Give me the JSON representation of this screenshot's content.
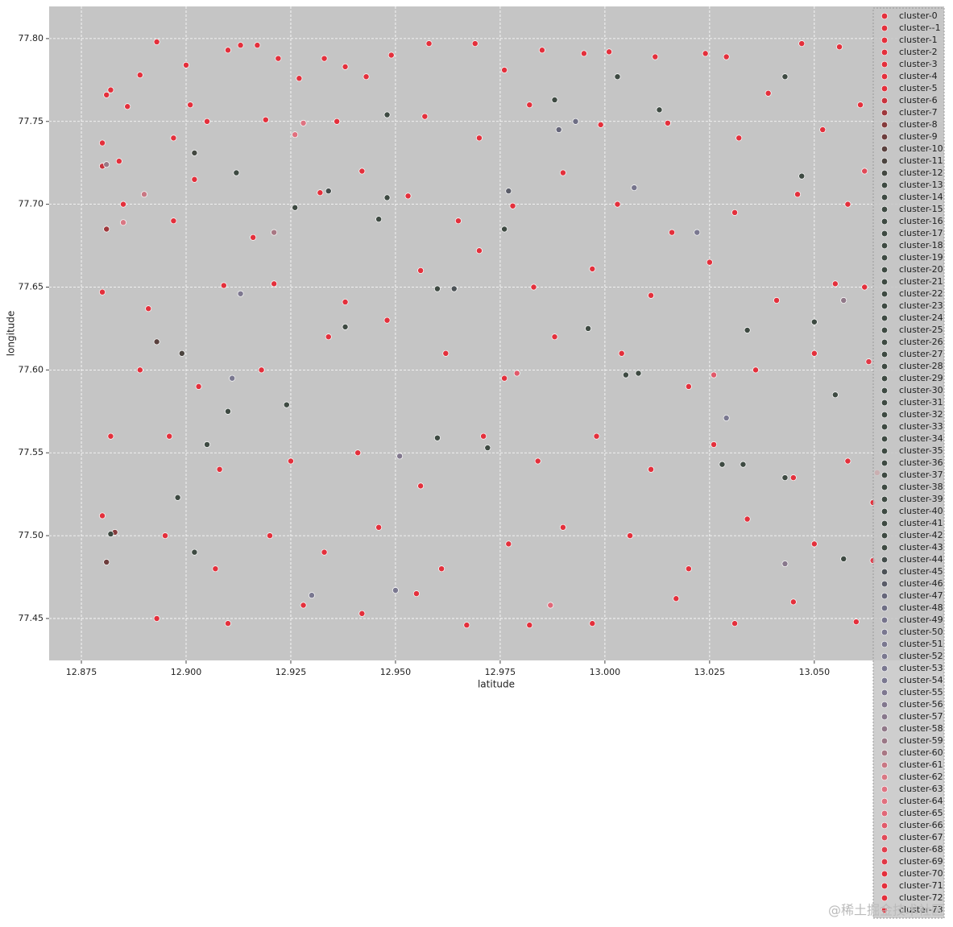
{
  "chart_data": {
    "type": "scatter",
    "x_label": "latitude",
    "y_label": "longitude",
    "xlim": [
      12.8673,
      13.081
    ],
    "ylim": [
      77.4247,
      77.8194
    ],
    "xticks": [
      12.875,
      {
        "value": 12.9,
        "label": "12.900"
      },
      12.925,
      {
        "value": 12.95,
        "label": "12.950"
      },
      12.975,
      {
        "value": 13.0,
        "label": "13.000"
      },
      13.025,
      {
        "value": 13.05,
        "label": "13.050"
      }
    ],
    "yticks": [
      {
        "value": 77.8,
        "label": "77.80"
      },
      77.75,
      {
        "value": 77.7,
        "label": "77.70"
      },
      77.65,
      {
        "value": 77.6,
        "label": "77.60"
      },
      77.55,
      {
        "value": 77.5,
        "label": "77.50"
      },
      77.45
    ],
    "grid": true,
    "background": "#c5c5c5",
    "series": [
      {
        "name": "cluster-0",
        "color": "#e3303c",
        "x": [
          12.88,
          12.881,
          12.882,
          12.884,
          12.886,
          12.889,
          12.893,
          12.897,
          12.9,
          12.901,
          12.91,
          12.913,
          12.917,
          12.922,
          12.927,
          12.933,
          12.938,
          12.943,
          12.949,
          12.958,
          12.969,
          12.976,
          12.985,
          12.995,
          13.001,
          13.012,
          13.024,
          13.029,
          13.039,
          13.047,
          13.056,
          12.905,
          12.919,
          12.936,
          12.957,
          12.97,
          12.982,
          12.999,
          13.015,
          13.032,
          13.052,
          12.885,
          12.897,
          12.902,
          12.916,
          12.932,
          12.942,
          12.953,
          12.965,
          12.978,
          12.99,
          13.003,
          13.016,
          13.031,
          13.046,
          13.058,
          12.88,
          12.891,
          12.909,
          12.921,
          12.938,
          12.956,
          12.97,
          12.983,
          12.997,
          13.011,
          13.025,
          13.041,
          13.055
        ],
        "y": [
          77.737,
          77.766,
          77.769,
          77.726,
          77.759,
          77.778,
          77.798,
          77.74,
          77.784,
          77.76,
          77.793,
          77.796,
          77.796,
          77.788,
          77.776,
          77.788,
          77.783,
          77.777,
          77.79,
          77.797,
          77.797,
          77.781,
          77.793,
          77.791,
          77.792,
          77.789,
          77.791,
          77.789,
          77.767,
          77.797,
          77.795,
          77.75,
          77.751,
          77.75,
          77.753,
          77.74,
          77.76,
          77.748,
          77.749,
          77.74,
          77.745,
          77.7,
          77.69,
          77.715,
          77.68,
          77.707,
          77.72,
          77.705,
          77.69,
          77.699,
          77.719,
          77.7,
          77.683,
          77.695,
          77.706,
          77.7,
          77.647,
          77.637,
          77.651,
          77.652,
          77.641,
          77.66,
          77.672,
          77.65,
          77.661,
          77.645,
          77.665,
          77.642,
          77.652
        ]
      },
      {
        "name": "cluster--1",
        "color": "#e3303c",
        "x": [
          12.889,
          12.903,
          12.918,
          12.934,
          12.948,
          12.962
        ],
        "y": [
          77.6,
          77.59,
          77.6,
          77.62,
          77.63,
          77.61
        ]
      },
      {
        "name": "cluster-1",
        "color": "#e3303c",
        "x": [
          12.976,
          12.988,
          13.004,
          13.02,
          13.036,
          13.05
        ],
        "y": [
          77.595,
          77.62,
          77.61,
          77.59,
          77.6,
          77.61
        ]
      },
      {
        "name": "cluster-2",
        "color": "#e3303c",
        "x": [
          12.882,
          12.896,
          12.908,
          12.925,
          12.941,
          12.956,
          12.971
        ],
        "y": [
          77.56,
          77.56,
          77.54,
          77.545,
          77.55,
          77.53,
          77.56
        ]
      },
      {
        "name": "cluster-3",
        "color": "#e3303c",
        "x": [
          12.984,
          12.998,
          13.011,
          13.026,
          13.045,
          13.058
        ],
        "y": [
          77.545,
          77.56,
          77.54,
          77.555,
          77.535,
          77.545
        ]
      },
      {
        "name": "cluster-4",
        "color": "#e3303c",
        "x": [
          12.88,
          12.895,
          12.907,
          12.92,
          12.933,
          12.946,
          12.961,
          12.977,
          12.99,
          13.006,
          13.02,
          13.034,
          13.05
        ],
        "y": [
          77.512,
          77.5,
          77.48,
          77.5,
          77.49,
          77.505,
          77.48,
          77.495,
          77.505,
          77.5,
          77.48,
          77.51,
          77.495
        ]
      },
      {
        "name": "cluster-5",
        "color": "#e3303c",
        "x": [
          12.893,
          12.91,
          12.928,
          12.942,
          12.955,
          12.967,
          12.982,
          12.997,
          13.017,
          13.031,
          13.045,
          13.06
        ],
        "y": [
          77.45,
          77.447,
          77.458,
          77.453,
          77.465,
          77.446,
          77.446,
          77.447,
          77.462,
          77.447,
          77.46,
          77.448
        ]
      },
      {
        "name": "cluster-6",
        "color": "#c8333d",
        "x": [
          12.88
        ],
        "y": [
          77.723
        ]
      },
      {
        "name": "cluster-7",
        "color": "#9e383c",
        "x": [
          12.881
        ],
        "y": [
          77.685
        ]
      },
      {
        "name": "cluster-8",
        "color": "#853b3c",
        "x": [
          12.883
        ],
        "y": [
          77.502
        ]
      },
      {
        "name": "cluster-9",
        "color": "#6d3e3d",
        "x": [
          12.881
        ],
        "y": [
          77.484
        ]
      },
      {
        "name": "cluster-10",
        "color": "#5a413e",
        "x": [
          12.893
        ],
        "y": [
          77.617
        ]
      },
      {
        "name": "cluster-11",
        "color": "#4c4540",
        "x": [
          12.899
        ],
        "y": [
          77.61
        ]
      },
      {
        "name": "cluster-12",
        "color": "#434841",
        "x": [
          12.902
        ],
        "y": [
          77.731
        ]
      },
      {
        "name": "cluster-13",
        "color": "#3e4a42",
        "x": [
          12.912
        ],
        "y": [
          77.719
        ]
      },
      {
        "name": "cluster-14",
        "color": "#3e4a42",
        "x": [
          12.91
        ],
        "y": [
          77.575
        ]
      },
      {
        "name": "cluster-15",
        "color": "#3e4a42",
        "x": [
          12.926
        ],
        "y": [
          77.698
        ]
      },
      {
        "name": "cluster-16",
        "color": "#3e4a42",
        "x": [
          12.924
        ],
        "y": [
          77.579
        ]
      },
      {
        "name": "cluster-17",
        "color": "#3e4a42",
        "x": [
          12.948
        ],
        "y": [
          77.754
        ]
      },
      {
        "name": "cluster-18",
        "color": "#3e4a42",
        "x": [
          12.946
        ],
        "y": [
          77.691
        ]
      },
      {
        "name": "cluster-19",
        "color": "#3e4a42",
        "x": [
          12.948
        ],
        "y": [
          77.704
        ]
      },
      {
        "name": "cluster-20",
        "color": "#3e4a42",
        "x": [
          12.96
        ],
        "y": [
          77.649
        ]
      },
      {
        "name": "cluster-21",
        "color": "#3e4a42",
        "x": [
          12.96
        ],
        "y": [
          77.559
        ]
      },
      {
        "name": "cluster-22",
        "color": "#3e4a42",
        "x": [
          12.972
        ],
        "y": [
          77.553
        ]
      },
      {
        "name": "cluster-23",
        "color": "#3e4a42",
        "x": [
          12.976
        ],
        "y": [
          77.685
        ]
      },
      {
        "name": "cluster-24",
        "color": "#3e4a42",
        "x": [
          12.988
        ],
        "y": [
          77.763
        ]
      },
      {
        "name": "cluster-25",
        "color": "#3e4a42",
        "x": [
          13.003
        ],
        "y": [
          77.777
        ]
      },
      {
        "name": "cluster-26",
        "color": "#3e4a42",
        "x": [
          13.013
        ],
        "y": [
          77.757
        ]
      },
      {
        "name": "cluster-27",
        "color": "#3e4a42",
        "x": [
          13.005
        ],
        "y": [
          77.597
        ]
      },
      {
        "name": "cluster-28",
        "color": "#3e4a42",
        "x": [
          13.028
        ],
        "y": [
          77.543
        ]
      },
      {
        "name": "cluster-29",
        "color": "#3e4a42",
        "x": [
          13.034
        ],
        "y": [
          77.624
        ]
      },
      {
        "name": "cluster-30",
        "color": "#3e4a42",
        "x": [
          13.043
        ],
        "y": [
          77.777
        ]
      },
      {
        "name": "cluster-31",
        "color": "#3e4a42",
        "x": [
          13.047
        ],
        "y": [
          77.717
        ]
      },
      {
        "name": "cluster-32",
        "color": "#3e4a42",
        "x": [
          13.05
        ],
        "y": [
          77.629
        ]
      },
      {
        "name": "cluster-33",
        "color": "#3e4a42",
        "x": [
          13.055
        ],
        "y": [
          77.585
        ]
      },
      {
        "name": "cluster-34",
        "color": "#3e4a42",
        "x": [
          13.057
        ],
        "y": [
          77.486
        ]
      },
      {
        "name": "cluster-35",
        "color": "#3e4a42",
        "x": [
          12.902
        ],
        "y": [
          77.49
        ]
      },
      {
        "name": "cluster-36",
        "color": "#3e4a42",
        "x": [
          12.898
        ],
        "y": [
          77.523
        ]
      },
      {
        "name": "cluster-37",
        "color": "#3e4a42",
        "x": [
          12.905
        ],
        "y": [
          77.555
        ]
      },
      {
        "name": "cluster-38",
        "color": "#3e4a42",
        "x": [
          12.938
        ],
        "y": [
          77.626
        ]
      },
      {
        "name": "cluster-39",
        "color": "#3e4a42",
        "x": [
          12.996
        ],
        "y": [
          77.625
        ]
      },
      {
        "name": "cluster-40",
        "color": "#3e4a42",
        "x": [
          13.033
        ],
        "y": [
          77.543
        ]
      },
      {
        "name": "cluster-41",
        "color": "#3e4a42",
        "x": [
          13.043
        ],
        "y": [
          77.535
        ]
      },
      {
        "name": "cluster-42",
        "color": "#3e4a42",
        "x": [
          13.008
        ],
        "y": [
          77.598
        ]
      },
      {
        "name": "cluster-43",
        "color": "#3e4a42",
        "x": [
          12.882
        ],
        "y": [
          77.501
        ]
      },
      {
        "name": "cluster-44",
        "color": "#434c4a",
        "x": [
          12.934
        ],
        "y": [
          77.708
        ]
      },
      {
        "name": "cluster-45",
        "color": "#4c5256",
        "x": [
          12.964
        ],
        "y": [
          77.649
        ]
      },
      {
        "name": "cluster-46",
        "color": "#5a5c68",
        "x": [
          12.977
        ],
        "y": [
          77.708
        ]
      },
      {
        "name": "cluster-47",
        "color": "#66667a",
        "x": [
          12.989
        ],
        "y": [
          77.745
        ]
      },
      {
        "name": "cluster-48",
        "color": "#6e6e84",
        "x": [
          12.993
        ],
        "y": [
          77.75
        ]
      },
      {
        "name": "cluster-49",
        "color": "#76748c",
        "x": [
          13.007
        ],
        "y": [
          77.71
        ]
      },
      {
        "name": "cluster-50",
        "color": "#7a7890",
        "x": [
          13.022
        ],
        "y": [
          77.683
        ]
      },
      {
        "name": "cluster-51",
        "color": "#7a7890",
        "x": [
          13.029
        ],
        "y": [
          77.571
        ]
      },
      {
        "name": "cluster-52",
        "color": "#7a7890",
        "x": [
          12.95
        ],
        "y": [
          77.467
        ]
      },
      {
        "name": "cluster-53",
        "color": "#7a7890",
        "x": [
          12.93
        ],
        "y": [
          77.464
        ]
      },
      {
        "name": "cluster-54",
        "color": "#7a7890",
        "x": [
          12.911
        ],
        "y": [
          77.595
        ]
      },
      {
        "name": "cluster-55",
        "color": "#7e7890",
        "x": [
          12.913
        ],
        "y": [
          77.646
        ]
      },
      {
        "name": "cluster-56",
        "color": "#82788e",
        "x": [
          12.951
        ],
        "y": [
          77.548
        ]
      },
      {
        "name": "cluster-57",
        "color": "#88788c",
        "x": [
          13.043
        ],
        "y": [
          77.483
        ]
      },
      {
        "name": "cluster-58",
        "color": "#907888",
        "x": [
          13.057
        ],
        "y": [
          77.642
        ]
      },
      {
        "name": "cluster-59",
        "color": "#9a7886",
        "x": [
          12.881
        ],
        "y": [
          77.724
        ]
      },
      {
        "name": "cluster-60",
        "color": "#a87884",
        "x": [
          12.921
        ],
        "y": [
          77.683
        ]
      },
      {
        "name": "cluster-61",
        "color": "#c87884",
        "x": [
          12.89
        ],
        "y": [
          77.706
        ]
      },
      {
        "name": "cluster-62",
        "color": "#d87884",
        "x": [
          12.885
        ],
        "y": [
          77.689
        ]
      },
      {
        "name": "cluster-63",
        "color": "#de7482",
        "x": [
          12.928
        ],
        "y": [
          77.749
        ]
      },
      {
        "name": "cluster-64",
        "color": "#e0707e",
        "x": [
          12.926
        ],
        "y": [
          77.742
        ]
      },
      {
        "name": "cluster-65",
        "color": "#e06878",
        "x": [
          12.987
        ],
        "y": [
          77.458
        ]
      },
      {
        "name": "cluster-66",
        "color": "#e05a6a",
        "x": [
          13.026,
          12.979
        ],
        "y": [
          77.597,
          77.598
        ]
      },
      {
        "name": "cluster-67",
        "color": "#e04a58",
        "x": [
          13.062
        ],
        "y": [
          77.72
        ]
      },
      {
        "name": "cluster-68",
        "color": "#e0404e",
        "x": [
          13.064
        ],
        "y": [
          77.485
        ]
      },
      {
        "name": "cluster-69",
        "color": "#e03846",
        "x": [
          13.063
        ],
        "y": [
          77.605
        ]
      },
      {
        "name": "cluster-70",
        "color": "#e3303c",
        "x": [
          13.065
        ],
        "y": [
          77.538
        ]
      },
      {
        "name": "cluster-71",
        "color": "#e3303c",
        "x": [
          13.061
        ],
        "y": [
          77.76
        ]
      },
      {
        "name": "cluster-72",
        "color": "#e3303c",
        "x": [
          13.062
        ],
        "y": [
          77.65
        ]
      },
      {
        "name": "cluster-73",
        "color": "#e3303c",
        "x": [
          13.064
        ],
        "y": [
          77.52
        ]
      }
    ]
  },
  "watermark": "@稀土掘金技术社区"
}
